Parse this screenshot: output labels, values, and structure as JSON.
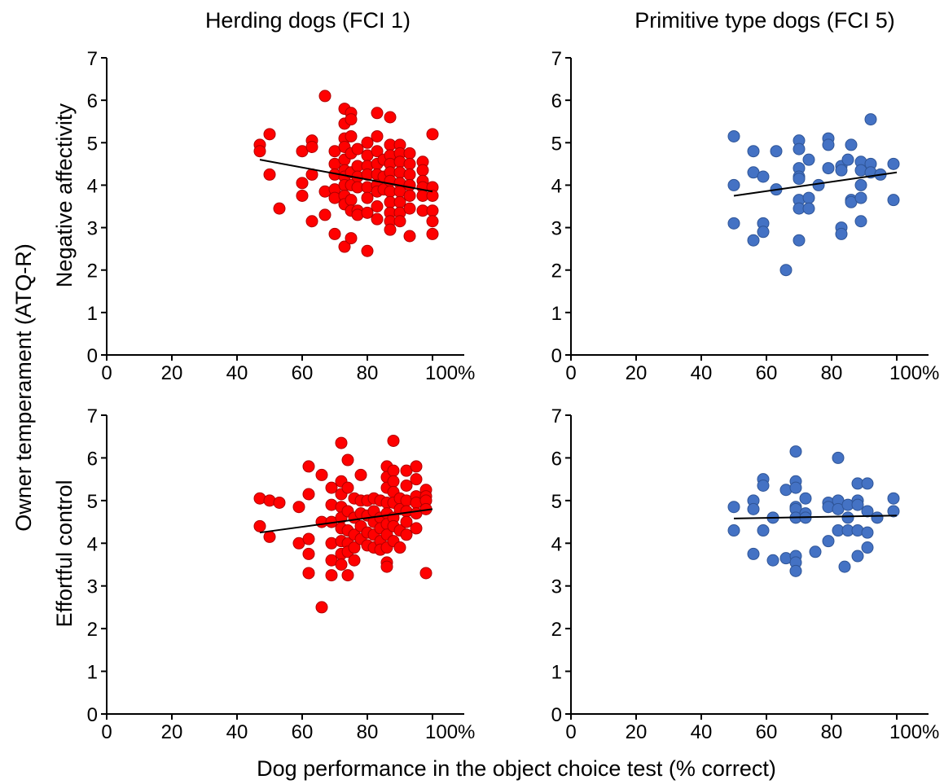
{
  "figure": {
    "y_label": "Owner temperament (ATQ-R)",
    "x_label": "Dog performance in the object choice test (% correct)",
    "column_titles": [
      "Herding dogs (FCI 1)",
      "Primitive type dogs (FCI 5)"
    ],
    "row_labels": [
      "Negative affectivity",
      "Effortful control"
    ],
    "x_ticks": [
      "0",
      "20",
      "40",
      "60",
      "80",
      "100%"
    ],
    "y_ticks": [
      "0",
      "1",
      "2",
      "3",
      "4",
      "5",
      "6",
      "7"
    ],
    "colors": {
      "herding": "#ff0000",
      "primitive": "#4472c4",
      "trend": "#000000",
      "axis": "#000000"
    }
  },
  "chart_data": [
    {
      "type": "scatter",
      "title": "Herding dogs (FCI 1)",
      "ylabel": "Negative affectivity",
      "xlabel": "Dog performance in the object choice test (% correct)",
      "xlim": [
        0,
        100
      ],
      "ylim": [
        0,
        7
      ],
      "grid": false,
      "color": "#ff0000",
      "points": [
        [
          47,
          4.95
        ],
        [
          47,
          4.8
        ],
        [
          50,
          5.2
        ],
        [
          50,
          4.25
        ],
        [
          53,
          3.45
        ],
        [
          60,
          4.8
        ],
        [
          60,
          4.05
        ],
        [
          60,
          3.75
        ],
        [
          63,
          5.05
        ],
        [
          63,
          4.9
        ],
        [
          63,
          4.25
        ],
        [
          63,
          3.15
        ],
        [
          67,
          6.1
        ],
        [
          67,
          3.85
        ],
        [
          67,
          3.3
        ],
        [
          70,
          4.8
        ],
        [
          70,
          4.5
        ],
        [
          70,
          4.25
        ],
        [
          70,
          3.9
        ],
        [
          70,
          3.7
        ],
        [
          70,
          2.85
        ],
        [
          73,
          5.8
        ],
        [
          73,
          5.45
        ],
        [
          73,
          5.1
        ],
        [
          73,
          4.9
        ],
        [
          73,
          4.6
        ],
        [
          73,
          4.35
        ],
        [
          73,
          4.2
        ],
        [
          73,
          4.0
        ],
        [
          73,
          3.75
        ],
        [
          73,
          3.55
        ],
        [
          73,
          2.55
        ],
        [
          75,
          5.7
        ],
        [
          75,
          5.55
        ],
        [
          75,
          5.15
        ],
        [
          75,
          4.75
        ],
        [
          75,
          4.3
        ],
        [
          75,
          4.0
        ],
        [
          75,
          3.65
        ],
        [
          75,
          3.4
        ],
        [
          75,
          2.75
        ],
        [
          77,
          4.85
        ],
        [
          77,
          4.45
        ],
        [
          77,
          4.2
        ],
        [
          77,
          3.95
        ],
        [
          77,
          3.4
        ],
        [
          77,
          3.3
        ],
        [
          80,
          5.0
        ],
        [
          80,
          4.7
        ],
        [
          80,
          4.45
        ],
        [
          80,
          4.25
        ],
        [
          80,
          3.95
        ],
        [
          80,
          3.7
        ],
        [
          80,
          3.35
        ],
        [
          80,
          2.45
        ],
        [
          83,
          5.7
        ],
        [
          83,
          5.15
        ],
        [
          83,
          4.8
        ],
        [
          83,
          4.5
        ],
        [
          83,
          4.25
        ],
        [
          83,
          4.0
        ],
        [
          83,
          3.85
        ],
        [
          83,
          3.5
        ],
        [
          83,
          3.2
        ],
        [
          85,
          4.6
        ],
        [
          85,
          4.2
        ],
        [
          85,
          3.9
        ],
        [
          87,
          5.6
        ],
        [
          87,
          4.95
        ],
        [
          87,
          4.7
        ],
        [
          87,
          4.5
        ],
        [
          87,
          4.3
        ],
        [
          87,
          4.1
        ],
        [
          87,
          3.85
        ],
        [
          87,
          3.6
        ],
        [
          87,
          3.35
        ],
        [
          87,
          3.15
        ],
        [
          87,
          2.95
        ],
        [
          90,
          4.95
        ],
        [
          90,
          4.75
        ],
        [
          90,
          4.55
        ],
        [
          90,
          4.3
        ],
        [
          90,
          4.05
        ],
        [
          90,
          3.85
        ],
        [
          90,
          3.6
        ],
        [
          90,
          3.35
        ],
        [
          90,
          3.15
        ],
        [
          93,
          4.75
        ],
        [
          93,
          4.5
        ],
        [
          93,
          4.25
        ],
        [
          93,
          4.0
        ],
        [
          93,
          3.75
        ],
        [
          93,
          3.45
        ],
        [
          93,
          2.8
        ],
        [
          97,
          4.55
        ],
        [
          97,
          4.35
        ],
        [
          97,
          4.1
        ],
        [
          97,
          3.95
        ],
        [
          97,
          3.75
        ],
        [
          97,
          3.4
        ],
        [
          100,
          5.2
        ],
        [
          100,
          3.95
        ],
        [
          100,
          3.75
        ],
        [
          100,
          3.4
        ],
        [
          100,
          3.15
        ],
        [
          100,
          2.85
        ]
      ],
      "trend": {
        "x": [
          47,
          100
        ],
        "y": [
          4.6,
          3.85
        ]
      }
    },
    {
      "type": "scatter",
      "title": "Primitive type dogs (FCI 5)",
      "ylabel": "Negative affectivity",
      "xlabel": "Dog performance in the object choice test (% correct)",
      "xlim": [
        0,
        100
      ],
      "ylim": [
        0,
        7
      ],
      "grid": false,
      "color": "#4472c4",
      "points": [
        [
          50,
          5.15
        ],
        [
          50,
          4.0
        ],
        [
          50,
          3.1
        ],
        [
          56,
          4.8
        ],
        [
          56,
          4.3
        ],
        [
          56,
          2.7
        ],
        [
          59,
          4.2
        ],
        [
          59,
          3.1
        ],
        [
          59,
          2.9
        ],
        [
          63,
          4.8
        ],
        [
          63,
          3.9
        ],
        [
          66,
          2.0
        ],
        [
          70,
          5.05
        ],
        [
          70,
          4.85
        ],
        [
          70,
          4.4
        ],
        [
          70,
          4.2
        ],
        [
          70,
          4.15
        ],
        [
          70,
          3.65
        ],
        [
          70,
          3.45
        ],
        [
          70,
          2.7
        ],
        [
          73,
          4.6
        ],
        [
          73,
          3.7
        ],
        [
          73,
          3.45
        ],
        [
          76,
          4.0
        ],
        [
          79,
          5.1
        ],
        [
          79,
          4.95
        ],
        [
          79,
          4.4
        ],
        [
          83,
          4.45
        ],
        [
          83,
          4.35
        ],
        [
          83,
          3.0
        ],
        [
          83,
          2.85
        ],
        [
          85,
          4.6
        ],
        [
          86,
          4.95
        ],
        [
          86,
          3.65
        ],
        [
          86,
          3.6
        ],
        [
          89,
          4.55
        ],
        [
          89,
          4.35
        ],
        [
          89,
          4.0
        ],
        [
          89,
          3.7
        ],
        [
          89,
          3.15
        ],
        [
          92,
          5.55
        ],
        [
          92,
          4.5
        ],
        [
          92,
          4.3
        ],
        [
          95,
          4.25
        ],
        [
          99,
          4.5
        ],
        [
          99,
          3.65
        ]
      ],
      "trend": {
        "x": [
          50,
          100
        ],
        "y": [
          3.75,
          4.3
        ]
      }
    },
    {
      "type": "scatter",
      "title": "Herding dogs (FCI 1)",
      "ylabel": "Effortful control",
      "xlabel": "Dog performance in the object choice test (% correct)",
      "xlim": [
        0,
        100
      ],
      "ylim": [
        0,
        7
      ],
      "grid": false,
      "color": "#ff0000",
      "points": [
        [
          47,
          5.05
        ],
        [
          47,
          4.4
        ],
        [
          50,
          5.0
        ],
        [
          50,
          4.15
        ],
        [
          53,
          4.95
        ],
        [
          59,
          4.85
        ],
        [
          59,
          4.0
        ],
        [
          62,
          5.8
        ],
        [
          62,
          5.15
        ],
        [
          62,
          4.1
        ],
        [
          62,
          3.75
        ],
        [
          62,
          3.3
        ],
        [
          66,
          5.6
        ],
        [
          66,
          4.5
        ],
        [
          66,
          2.5
        ],
        [
          69,
          5.3
        ],
        [
          69,
          4.9
        ],
        [
          69,
          4.5
        ],
        [
          69,
          4.0
        ],
        [
          69,
          3.6
        ],
        [
          69,
          3.25
        ],
        [
          72,
          6.35
        ],
        [
          72,
          5.45
        ],
        [
          72,
          5.15
        ],
        [
          72,
          4.85
        ],
        [
          72,
          4.6
        ],
        [
          72,
          4.35
        ],
        [
          72,
          4.05
        ],
        [
          72,
          3.75
        ],
        [
          72,
          3.5
        ],
        [
          74,
          5.95
        ],
        [
          74,
          5.3
        ],
        [
          74,
          4.75
        ],
        [
          74,
          4.3
        ],
        [
          74,
          4.0
        ],
        [
          74,
          3.8
        ],
        [
          74,
          3.25
        ],
        [
          76,
          5.05
        ],
        [
          76,
          4.6
        ],
        [
          76,
          4.2
        ],
        [
          76,
          3.9
        ],
        [
          76,
          3.6
        ],
        [
          78,
          5.6
        ],
        [
          78,
          5.0
        ],
        [
          78,
          4.7
        ],
        [
          78,
          4.4
        ],
        [
          78,
          4.1
        ],
        [
          80,
          5.0
        ],
        [
          80,
          4.65
        ],
        [
          80,
          4.25
        ],
        [
          80,
          3.95
        ],
        [
          82,
          5.05
        ],
        [
          82,
          4.75
        ],
        [
          82,
          4.5
        ],
        [
          82,
          4.2
        ],
        [
          82,
          3.9
        ],
        [
          84,
          5.0
        ],
        [
          84,
          4.6
        ],
        [
          84,
          4.35
        ],
        [
          84,
          4.05
        ],
        [
          84,
          3.85
        ],
        [
          86,
          5.8
        ],
        [
          86,
          5.55
        ],
        [
          86,
          5.3
        ],
        [
          86,
          4.95
        ],
        [
          86,
          4.7
        ],
        [
          86,
          4.45
        ],
        [
          86,
          4.2
        ],
        [
          86,
          3.9
        ],
        [
          86,
          3.55
        ],
        [
          86,
          3.45
        ],
        [
          88,
          6.4
        ],
        [
          88,
          5.7
        ],
        [
          88,
          5.45
        ],
        [
          88,
          5.2
        ],
        [
          88,
          4.95
        ],
        [
          88,
          4.6
        ],
        [
          88,
          4.4
        ],
        [
          88,
          4.05
        ],
        [
          90,
          5.05
        ],
        [
          90,
          4.8
        ],
        [
          90,
          4.3
        ],
        [
          90,
          3.9
        ],
        [
          92,
          5.7
        ],
        [
          92,
          5.35
        ],
        [
          92,
          5.0
        ],
        [
          92,
          4.75
        ],
        [
          92,
          4.5
        ],
        [
          92,
          4.2
        ],
        [
          95,
          5.8
        ],
        [
          95,
          5.5
        ],
        [
          95,
          5.1
        ],
        [
          95,
          4.95
        ],
        [
          95,
          4.7
        ],
        [
          95,
          4.35
        ],
        [
          98,
          5.25
        ],
        [
          98,
          5.1
        ],
        [
          98,
          5.0
        ],
        [
          98,
          4.8
        ],
        [
          98,
          3.3
        ]
      ],
      "trend": {
        "x": [
          47,
          100
        ],
        "y": [
          4.25,
          4.8
        ]
      }
    },
    {
      "type": "scatter",
      "title": "Primitive type dogs (FCI 5)",
      "ylabel": "Effortful control",
      "xlabel": "Dog performance in the object choice test (% correct)",
      "xlim": [
        0,
        100
      ],
      "ylim": [
        0,
        7
      ],
      "grid": false,
      "color": "#4472c4",
      "points": [
        [
          50,
          4.85
        ],
        [
          50,
          4.3
        ],
        [
          56,
          5.0
        ],
        [
          56,
          4.8
        ],
        [
          56,
          3.75
        ],
        [
          59,
          5.5
        ],
        [
          59,
          5.35
        ],
        [
          59,
          4.3
        ],
        [
          62,
          4.6
        ],
        [
          62,
          3.6
        ],
        [
          66,
          5.25
        ],
        [
          66,
          3.65
        ],
        [
          69,
          6.15
        ],
        [
          69,
          5.45
        ],
        [
          69,
          5.3
        ],
        [
          69,
          4.85
        ],
        [
          69,
          4.8
        ],
        [
          69,
          4.6
        ],
        [
          69,
          3.7
        ],
        [
          69,
          3.55
        ],
        [
          69,
          3.35
        ],
        [
          72,
          5.05
        ],
        [
          72,
          4.7
        ],
        [
          72,
          4.6
        ],
        [
          75,
          3.8
        ],
        [
          79,
          4.95
        ],
        [
          79,
          4.85
        ],
        [
          79,
          4.05
        ],
        [
          82,
          6.0
        ],
        [
          82,
          5.0
        ],
        [
          82,
          4.8
        ],
        [
          82,
          4.3
        ],
        [
          84,
          3.45
        ],
        [
          85,
          4.9
        ],
        [
          85,
          4.6
        ],
        [
          85,
          4.3
        ],
        [
          88,
          5.4
        ],
        [
          88,
          5.0
        ],
        [
          88,
          4.9
        ],
        [
          88,
          4.3
        ],
        [
          88,
          3.7
        ],
        [
          91,
          5.4
        ],
        [
          91,
          4.75
        ],
        [
          91,
          4.25
        ],
        [
          91,
          3.9
        ],
        [
          94,
          4.6
        ],
        [
          99,
          5.05
        ],
        [
          99,
          4.75
        ]
      ],
      "trend": {
        "x": [
          50,
          100
        ],
        "y": [
          4.58,
          4.65
        ]
      }
    }
  ]
}
